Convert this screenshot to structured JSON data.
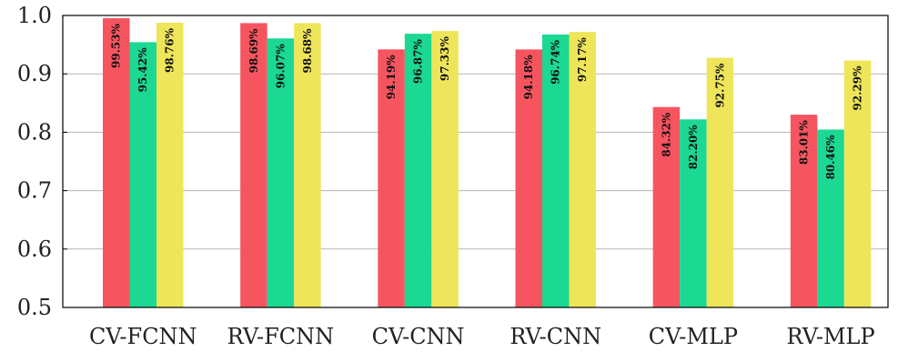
{
  "chart_data": {
    "type": "bar",
    "categories": [
      "CV-FCNN",
      "RV-FCNN",
      "CV-CNN",
      "RV-CNN",
      "CV-MLP",
      "RV-MLP"
    ],
    "series": [
      {
        "color": "#f65560",
        "values": [
          0.9953,
          0.9869,
          0.9419,
          0.9418,
          0.8432,
          0.8301
        ],
        "labels": [
          "99.53%",
          "98.69%",
          "94.19%",
          "94.18%",
          "84.32%",
          "83.01%"
        ]
      },
      {
        "color": "#1bd893",
        "values": [
          0.9542,
          0.9607,
          0.9687,
          0.9674,
          0.822,
          0.8046
        ],
        "labels": [
          "95.42%",
          "96.07%",
          "96.87%",
          "96.74%",
          "82.20%",
          "80.46%"
        ]
      },
      {
        "color": "#eee55a",
        "values": [
          0.9876,
          0.9868,
          0.9733,
          0.9717,
          0.9275,
          0.9229
        ],
        "labels": [
          "98.76%",
          "98.68%",
          "97.33%",
          "97.17%",
          "92.75%",
          "92.29%"
        ]
      }
    ],
    "ylim": [
      0.5,
      1.0
    ],
    "yticks": [
      "0.5",
      "0.6",
      "0.7",
      "0.8",
      "0.9",
      "1.0"
    ],
    "grid": true,
    "title": "",
    "xlabel": "",
    "ylabel": ""
  }
}
